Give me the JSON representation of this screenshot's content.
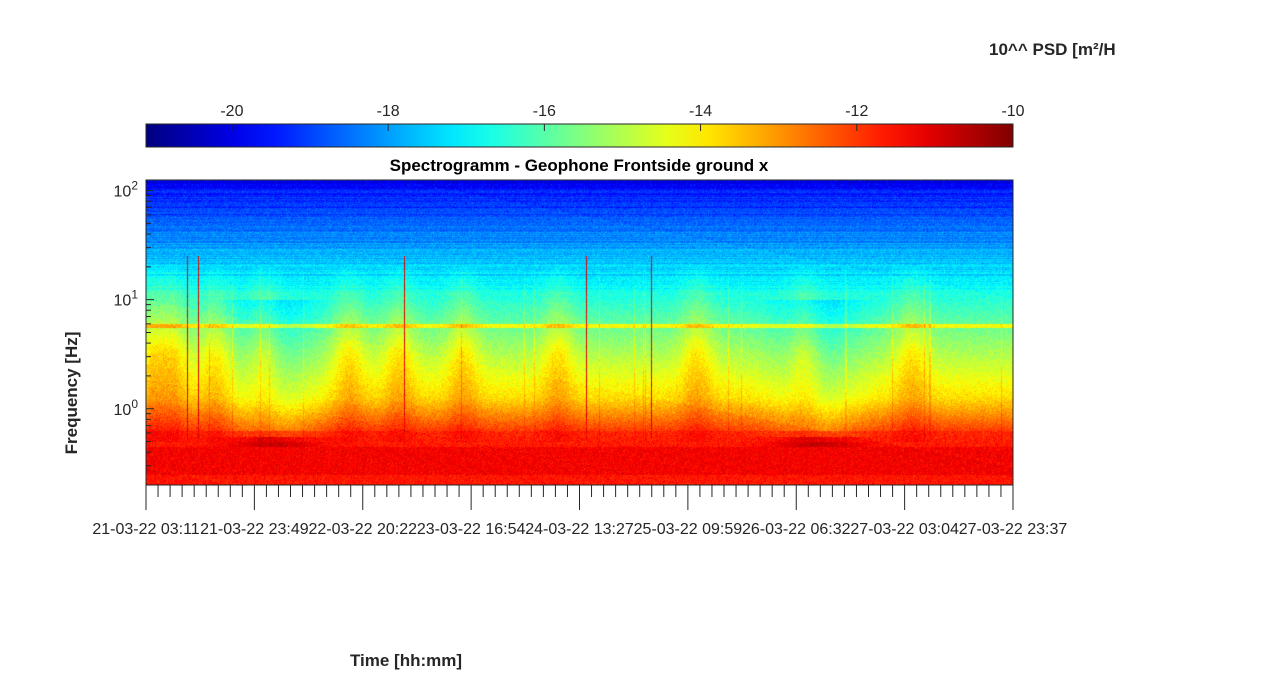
{
  "chart_data": {
    "type": "heatmap",
    "title": "Spectrogramm - Geophone Frontside ground x",
    "xlabel": "Time [hh:mm]",
    "ylabel": "Frequency [Hz]",
    "colorbar": {
      "label": "10^^ PSD [m²/H",
      "range": [
        -21.1,
        -10
      ],
      "ticks": [
        -20,
        -18,
        -16,
        -14,
        -12,
        -10
      ],
      "tick_labels": [
        "-20",
        "-18",
        "-16",
        "-14",
        "-12",
        "-10"
      ],
      "colormap": "jet",
      "location": "top"
    },
    "y_axis": {
      "scale": "log",
      "range": [
        0.2,
        125
      ],
      "major_ticks": [
        1,
        10,
        100
      ],
      "tick_labels": [
        {
          "base": "10",
          "exp": "0"
        },
        {
          "base": "10",
          "exp": "1"
        },
        {
          "base": "10",
          "exp": "2"
        }
      ]
    },
    "x_axis": {
      "range": [
        "21-03-22 03:11",
        "27-03-22 23:37"
      ],
      "tick_labels": [
        "21-03-22 03:11",
        "21-03-22 23:49",
        "22-03-22 20:22",
        "23-03-22 16:54",
        "24-03-22 13:27",
        "25-03-22 09:59",
        "26-03-22 06:32",
        "27-03-22 03:04",
        "27-03-22 23:37"
      ],
      "minor_ticks_per_interval": 9
    },
    "grid": false,
    "description_of_content": {
      "low_freq_band_psd_log10": -11.5,
      "high_freq_band_psd_log10": -19.5,
      "persistent_line_hz": 5.8,
      "activity_peaks_day_fraction": [
        0.07,
        0.2,
        0.55,
        0.93,
        1.6,
        2.0,
        2.5,
        3.25,
        4.35,
        5.2,
        6.05
      ],
      "quiet_periods_day_fraction": [
        1.0,
        5.3
      ]
    }
  }
}
